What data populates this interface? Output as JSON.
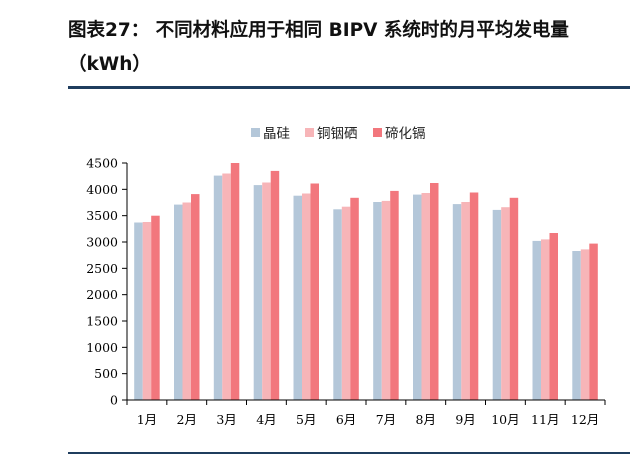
{
  "title": "图表27：  不同材料应用于相同 BIPV 系统时的月平均发电量（kWh）",
  "chart_data": {
    "type": "bar",
    "categories": [
      "1月",
      "2月",
      "3月",
      "4月",
      "5月",
      "6月",
      "7月",
      "8月",
      "9月",
      "10月",
      "11月",
      "12月"
    ],
    "series": [
      {
        "name": "晶硅",
        "color": "#b4c7d9",
        "values": [
          3370,
          3710,
          4260,
          4080,
          3880,
          3620,
          3760,
          3900,
          3720,
          3610,
          3020,
          2830
        ]
      },
      {
        "name": "铜铟硒",
        "color": "#f7b5b8",
        "values": [
          3380,
          3750,
          4300,
          4130,
          3920,
          3670,
          3780,
          3930,
          3760,
          3660,
          3050,
          2860
        ]
      },
      {
        "name": "碲化镉",
        "color": "#f2777d",
        "values": [
          3500,
          3910,
          4500,
          4350,
          4110,
          3840,
          3970,
          4120,
          3940,
          3840,
          3170,
          2970
        ]
      }
    ],
    "ylim": [
      0,
      4500
    ],
    "yticks": [
      0,
      500,
      1000,
      1500,
      2000,
      2500,
      3000,
      3500,
      4000,
      4500
    ],
    "grid": false,
    "legend_position": "top-center"
  }
}
